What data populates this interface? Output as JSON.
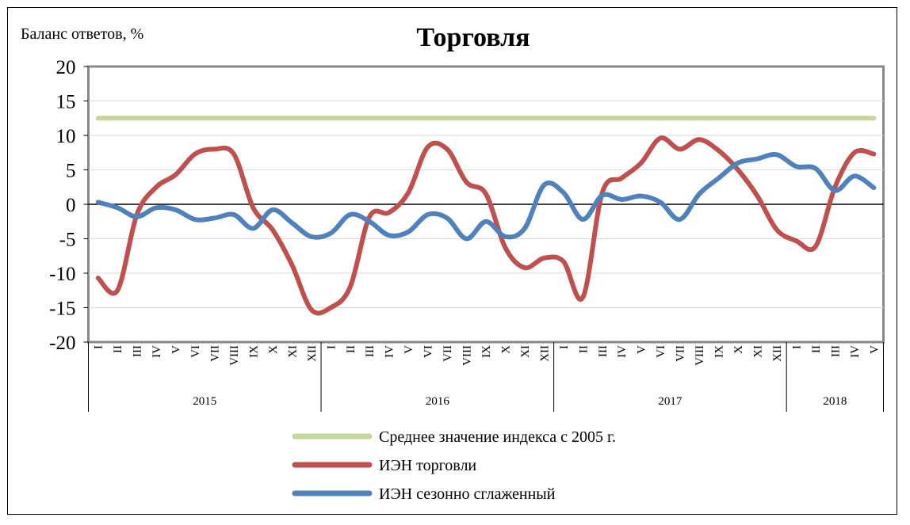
{
  "chart_data": {
    "type": "line",
    "title": "Торговля",
    "ylabel": "Баланс ответов, %",
    "ylim": [
      -20,
      20
    ],
    "yticks": [
      20,
      15,
      10,
      5,
      0,
      -5,
      -10,
      -15,
      -20
    ],
    "month_labels": [
      "I",
      "II",
      "III",
      "IV",
      "V",
      "VI",
      "VII",
      "VIII",
      "IX",
      "X",
      "XI",
      "XII",
      "I",
      "II",
      "III",
      "IV",
      "V",
      "VI",
      "VII",
      "VIII",
      "IX",
      "X",
      "XI",
      "XII",
      "I",
      "II",
      "III",
      "IV",
      "V",
      "VI",
      "VII",
      "VIII",
      "IX",
      "X",
      "XI",
      "XII",
      "I",
      "II",
      "III",
      "IV",
      "V"
    ],
    "years": [
      {
        "label": "2015",
        "months": 12
      },
      {
        "label": "2016",
        "months": 12
      },
      {
        "label": "2017",
        "months": 12
      },
      {
        "label": "2018",
        "months": 5
      }
    ],
    "series": [
      {
        "name": "Среднее значение индекса с 2005 г.",
        "color": "#c3d69b",
        "values": [
          12.5,
          12.5,
          12.5,
          12.5,
          12.5,
          12.5,
          12.5,
          12.5,
          12.5,
          12.5,
          12.5,
          12.5,
          12.5,
          12.5,
          12.5,
          12.5,
          12.5,
          12.5,
          12.5,
          12.5,
          12.5,
          12.5,
          12.5,
          12.5,
          12.5,
          12.5,
          12.5,
          12.5,
          12.5,
          12.5,
          12.5,
          12.5,
          12.5,
          12.5,
          12.5,
          12.5,
          12.5,
          12.5,
          12.5,
          12.5,
          12.5
        ]
      },
      {
        "name": "ИЭН торговли",
        "color": "#c0504d",
        "values": [
          -10.7,
          -12.5,
          -1.5,
          2.5,
          4.3,
          7.3,
          8.0,
          7.3,
          -0.5,
          -3.7,
          -8.8,
          -15.3,
          -15.0,
          -12.0,
          -1.8,
          -1.2,
          1.7,
          8.3,
          8.0,
          3.2,
          1.5,
          -6.3,
          -9.2,
          -7.8,
          -8.3,
          -13.5,
          1.7,
          3.8,
          6.0,
          9.6,
          8.0,
          9.4,
          7.8,
          5.0,
          1.2,
          -3.7,
          -5.3,
          -6.1,
          2.5,
          7.5,
          7.3
        ]
      },
      {
        "name": "ИЭН сезонно сглаженный",
        "color": "#4f81bd",
        "values": [
          0.3,
          -0.5,
          -1.8,
          -0.5,
          -0.8,
          -2.2,
          -2.0,
          -1.5,
          -3.5,
          -0.8,
          -2.7,
          -4.7,
          -4.2,
          -1.5,
          -2.5,
          -4.5,
          -4.0,
          -1.5,
          -2.0,
          -5.0,
          -2.5,
          -4.7,
          -3.5,
          2.8,
          1.7,
          -2.2,
          1.3,
          0.7,
          1.2,
          0.3,
          -2.2,
          1.5,
          3.8,
          6.0,
          6.6,
          7.2,
          5.5,
          5.2,
          2.0,
          4.1,
          2.4
        ]
      }
    ],
    "grid": true,
    "legend_position": "bottom"
  }
}
